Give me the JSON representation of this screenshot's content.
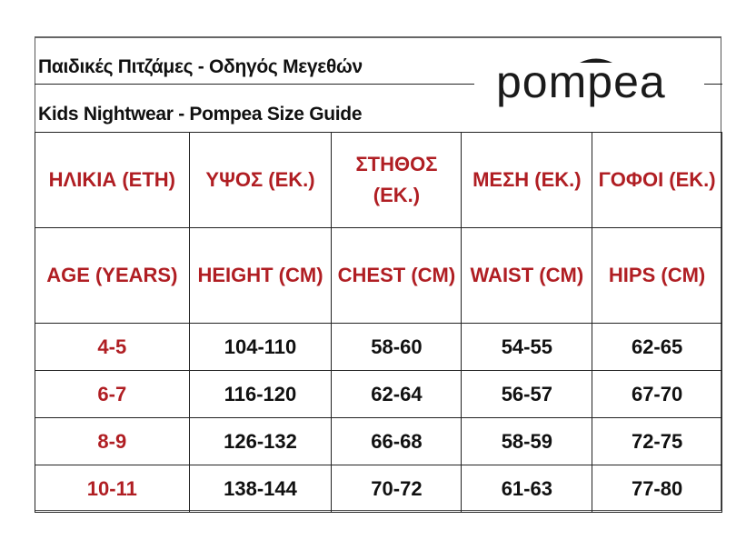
{
  "header": {
    "title_greek": "Παιδικές Πιτζάμες - Οδηγός Μεγεθών",
    "title_english": "Kids Nightwear - Pompea Size Guide",
    "logo_text": "pompea"
  },
  "colors": {
    "accent": "#b01e23",
    "text": "#111111"
  },
  "table": {
    "headers_greek": [
      "ΗΛΙΚΙΑ (ΕΤΗ)",
      "ΥΨΟΣ (ΕΚ.)",
      "ΣΤΗΘΟΣ (ΕΚ.)",
      "ΜΕΣΗ (ΕΚ.)",
      "ΓΟΦΟΙ (ΕΚ.)"
    ],
    "headers_english": [
      "AGE (YEARS)",
      "HEIGHT (CM)",
      "CHEST (CM)",
      "WAIST (CM)",
      "HIPS (CM)"
    ],
    "rows": [
      [
        "4-5",
        "104-110",
        "58-60",
        "54-55",
        "62-65"
      ],
      [
        "6-7",
        "116-120",
        "62-64",
        "56-57",
        "67-70"
      ],
      [
        "8-9",
        "126-132",
        "66-68",
        "58-59",
        "72-75"
      ],
      [
        "10-11",
        "138-144",
        "70-72",
        "61-63",
        "77-80"
      ]
    ]
  }
}
